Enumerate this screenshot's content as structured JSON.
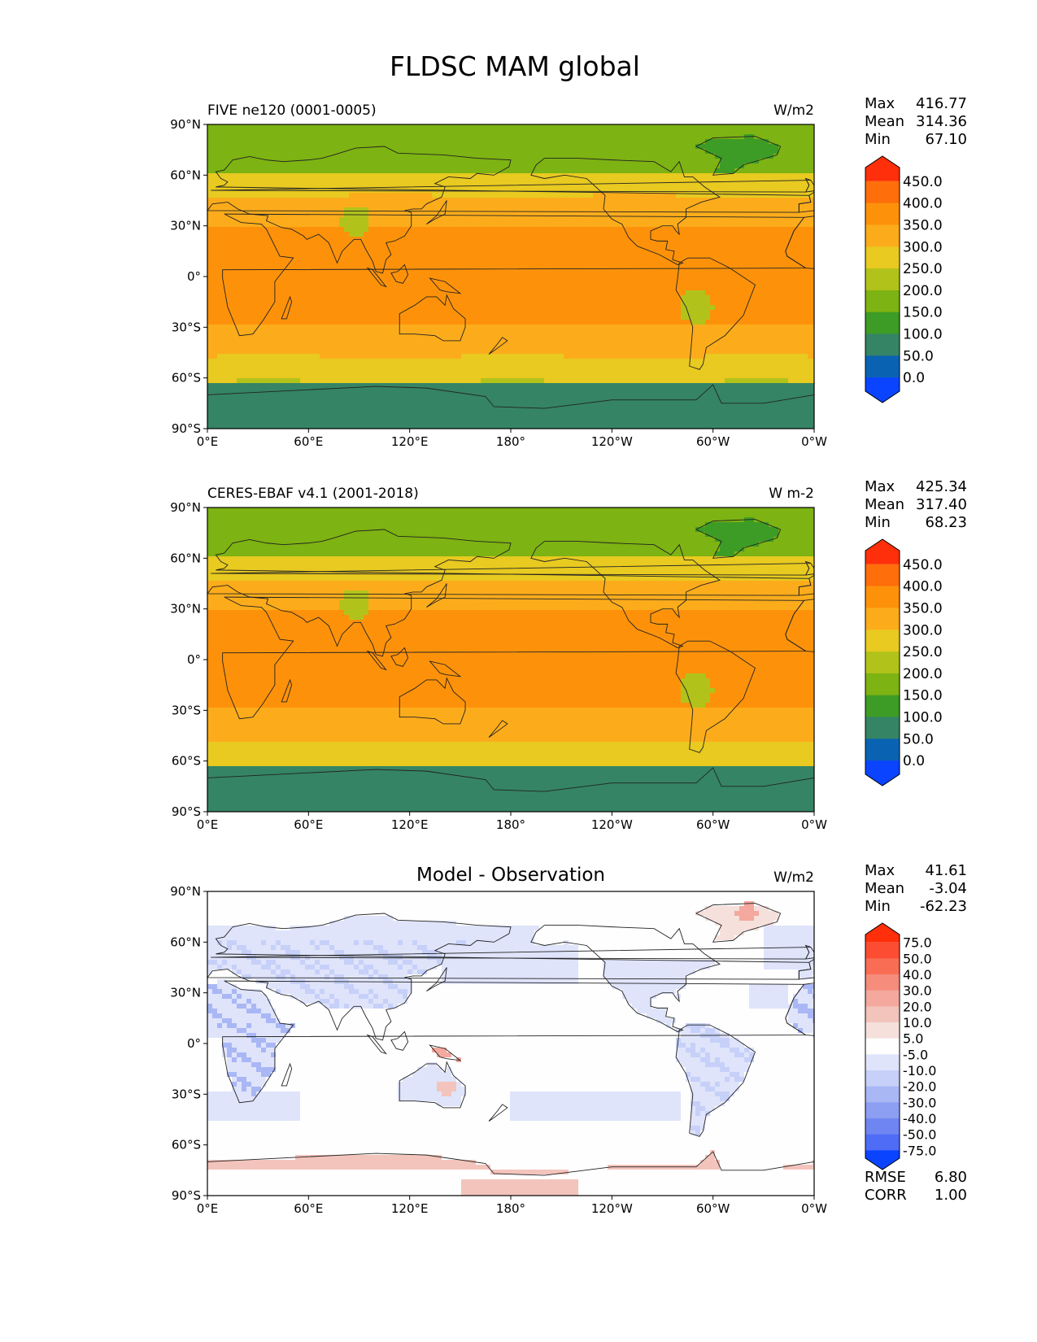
{
  "figure_title": "FLDSC MAM global",
  "chart_data": [
    {
      "type": "heatmap",
      "title_left": "FIVE ne120 (0001-0005)",
      "units": "W/m2",
      "stats": {
        "labels": [
          "Max",
          "Mean",
          "Min"
        ],
        "values": [
          "416.77",
          "314.36",
          "67.10"
        ]
      },
      "colorbar": {
        "levels": [
          "450.0",
          "400.0",
          "350.0",
          "300.0",
          "250.0",
          "200.0",
          "150.0",
          "100.0",
          "50.0",
          "0.0"
        ],
        "colors": [
          "#fe2f0a",
          "#fe6e0a",
          "#fd920a",
          "#fcac1b",
          "#e8ca20",
          "#b1c31b",
          "#7db312",
          "#3d9c26",
          "#358466",
          "#0a63b2",
          "#0a44fe"
        ]
      },
      "field": "sw"
    },
    {
      "type": "heatmap",
      "title_left": "CERES-EBAF v4.1 (2001-2018)",
      "units": "W m-2",
      "stats": {
        "labels": [
          "Max",
          "Mean",
          "Min"
        ],
        "values": [
          "425.34",
          "317.40",
          "68.23"
        ]
      },
      "colorbar": {
        "levels": [
          "450.0",
          "400.0",
          "350.0",
          "300.0",
          "250.0",
          "200.0",
          "150.0",
          "100.0",
          "50.0",
          "0.0"
        ],
        "colors": [
          "#fe2f0a",
          "#fe6e0a",
          "#fd920a",
          "#fcac1b",
          "#e8ca20",
          "#b1c31b",
          "#7db312",
          "#3d9c26",
          "#358466",
          "#0a63b2",
          "#0a44fe"
        ]
      },
      "field": "sw"
    },
    {
      "type": "heatmap",
      "title_center": "Model - Observation",
      "units": "W/m2",
      "stats": {
        "labels": [
          "Max",
          "Mean",
          "Min"
        ],
        "values": [
          "41.61",
          "-3.04",
          "-62.23"
        ]
      },
      "colorbar": {
        "levels": [
          "75.0",
          "50.0",
          "40.0",
          "30.0",
          "20.0",
          "10.0",
          "5.0",
          "-5.0",
          "-10.0",
          "-20.0",
          "-30.0",
          "-40.0",
          "-50.0",
          "-75.0"
        ],
        "colors": [
          "#fe2f0a",
          "#fc4d33",
          "#f96d55",
          "#f68c7c",
          "#f4a89e",
          "#f3c4bc",
          "#f5e0dc",
          "#fefefe",
          "#dfe4fb",
          "#c6d0f8",
          "#a9b7f5",
          "#8c9ff2",
          "#6f86f2",
          "#4f6cf6",
          "#0a44fe"
        ]
      },
      "extra_stats": {
        "labels": [
          "RMSE",
          "CORR"
        ],
        "values": [
          "6.80",
          "1.00"
        ]
      },
      "field": "diff"
    }
  ],
  "axes": {
    "x_ticks": [
      "0°E",
      "60°E",
      "120°E",
      "180°",
      "120°W",
      "60°W",
      "0°W"
    ],
    "y_ticks": [
      "90°N",
      "60°N",
      "30°N",
      "0°",
      "30°S",
      "60°S",
      "90°S"
    ],
    "x_range": [
      0,
      360
    ],
    "y_range": [
      -90,
      90
    ]
  },
  "colors": {
    "land_outline": "#222222",
    "frame": "#000000"
  }
}
